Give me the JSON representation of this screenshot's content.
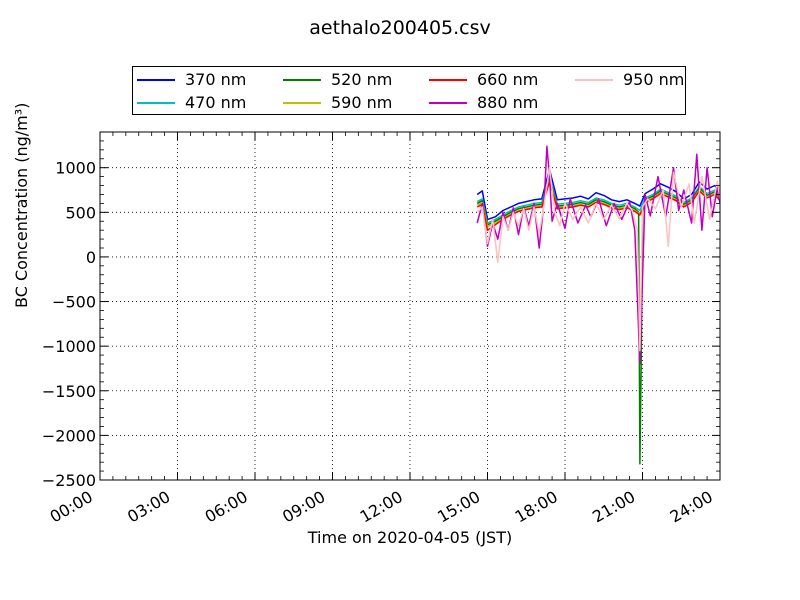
{
  "chart_data": {
    "type": "line",
    "title": "aethalo200405.csv",
    "xlabel": "Time on 2020-04-05 (JST)",
    "ylabel": "BC Concentration (ng/m³)",
    "xlim": [
      0,
      24
    ],
    "ylim": [
      -2500,
      1400
    ],
    "x_tick_labels": [
      "00:00",
      "03:00",
      "06:00",
      "09:00",
      "12:00",
      "15:00",
      "18:00",
      "21:00",
      "24:00"
    ],
    "y_ticks": [
      -2500,
      -2000,
      -1500,
      -1000,
      -500,
      0,
      500,
      1000
    ],
    "y_tick_labels": [
      "−2500",
      "−2000",
      "−1500",
      "−1000",
      "−500",
      "0",
      "500",
      "1000"
    ],
    "grid": true,
    "legend_position": "top",
    "series": [
      {
        "name": "370 nm",
        "color": "#0000ff",
        "x": [
          14.6,
          14.8,
          15.0,
          15.3,
          15.6,
          15.9,
          16.2,
          16.5,
          16.8,
          17.1,
          17.4,
          17.7,
          18.0,
          18.3,
          18.6,
          18.9,
          19.2,
          19.5,
          19.8,
          20.1,
          20.4,
          20.7,
          20.9,
          21.1,
          21.4,
          21.7,
          22.0,
          22.3,
          22.6,
          22.9,
          23.2,
          23.5,
          23.8,
          24.0
        ],
        "y": [
          700,
          740,
          420,
          450,
          520,
          560,
          600,
          620,
          640,
          650,
          980,
          640,
          650,
          660,
          680,
          650,
          720,
          690,
          640,
          620,
          640,
          600,
          570,
          710,
          760,
          820,
          780,
          730,
          650,
          700,
          840,
          760,
          800,
          720
        ]
      },
      {
        "name": "470 nm",
        "color": "#00bfbf",
        "x": [
          14.6,
          14.8,
          15.0,
          15.3,
          15.6,
          15.9,
          16.2,
          16.5,
          16.8,
          17.1,
          17.4,
          17.7,
          18.0,
          18.3,
          18.6,
          18.9,
          19.2,
          19.5,
          19.8,
          20.1,
          20.4,
          20.7,
          20.9,
          21.1,
          21.4,
          21.7,
          22.0,
          22.3,
          22.6,
          22.9,
          23.2,
          23.5,
          23.8,
          24.0
        ],
        "y": [
          620,
          650,
          380,
          420,
          470,
          520,
          560,
          580,
          600,
          610,
          900,
          590,
          600,
          610,
          630,
          610,
          660,
          640,
          600,
          580,
          600,
          560,
          520,
          660,
          700,
          760,
          720,
          680,
          610,
          660,
          790,
          710,
          750,
          680
        ]
      },
      {
        "name": "520 nm",
        "color": "#008000",
        "x": [
          14.6,
          14.8,
          15.0,
          15.3,
          15.6,
          15.9,
          16.2,
          16.5,
          16.8,
          17.1,
          17.4,
          17.7,
          18.0,
          18.3,
          18.6,
          18.9,
          19.2,
          19.5,
          19.8,
          20.1,
          20.4,
          20.7,
          20.85,
          20.9,
          20.95,
          21.0,
          21.1,
          21.4,
          21.7,
          22.0,
          22.3,
          22.6,
          22.9,
          23.2,
          23.5,
          23.8,
          24.0
        ],
        "y": [
          600,
          630,
          360,
          400,
          450,
          500,
          540,
          560,
          580,
          590,
          880,
          570,
          580,
          590,
          610,
          590,
          640,
          620,
          580,
          560,
          580,
          540,
          500,
          -2320,
          -1200,
          500,
          640,
          680,
          740,
          700,
          660,
          590,
          640,
          770,
          690,
          730,
          660
        ]
      },
      {
        "name": "590 nm",
        "color": "#bfbf00",
        "x": [
          14.6,
          14.8,
          15.0,
          15.3,
          15.6,
          15.9,
          16.2,
          16.5,
          16.8,
          17.1,
          17.4,
          17.7,
          18.0,
          18.3,
          18.6,
          18.9,
          19.2,
          19.5,
          19.8,
          20.1,
          20.4,
          20.7,
          20.9,
          21.1,
          21.4,
          21.7,
          22.0,
          22.3,
          22.6,
          22.9,
          23.2,
          23.5,
          23.8,
          24.0
        ],
        "y": [
          580,
          610,
          340,
          380,
          430,
          480,
          520,
          540,
          560,
          570,
          860,
          550,
          560,
          570,
          590,
          570,
          620,
          600,
          560,
          540,
          560,
          520,
          480,
          620,
          660,
          720,
          680,
          640,
          570,
          620,
          750,
          670,
          710,
          640
        ]
      },
      {
        "name": "660 nm",
        "color": "#ff0000",
        "x": [
          14.6,
          14.8,
          15.0,
          15.3,
          15.6,
          15.9,
          16.2,
          16.5,
          16.8,
          17.1,
          17.4,
          17.7,
          18.0,
          18.3,
          18.6,
          18.9,
          19.2,
          19.5,
          19.8,
          20.1,
          20.4,
          20.7,
          20.9,
          21.1,
          21.4,
          21.7,
          22.0,
          22.3,
          22.6,
          22.9,
          23.2,
          23.5,
          23.8,
          24.0
        ],
        "y": [
          560,
          590,
          300,
          360,
          420,
          470,
          510,
          530,
          550,
          560,
          840,
          540,
          550,
          560,
          580,
          560,
          610,
          590,
          550,
          530,
          550,
          510,
          470,
          610,
          650,
          710,
          670,
          630,
          560,
          610,
          740,
          660,
          700,
          630
        ]
      },
      {
        "name": "880 nm",
        "color": "#bf00bf",
        "x": [
          14.6,
          14.8,
          15.0,
          15.2,
          15.4,
          15.6,
          15.8,
          16.0,
          16.2,
          16.4,
          16.6,
          16.8,
          17.0,
          17.2,
          17.3,
          17.4,
          17.5,
          17.7,
          18.0,
          18.2,
          18.5,
          18.8,
          19.0,
          19.3,
          19.6,
          19.9,
          20.2,
          20.5,
          20.7,
          20.9,
          21.1,
          21.3,
          21.6,
          21.9,
          22.2,
          22.4,
          22.6,
          22.9,
          23.1,
          23.3,
          23.5,
          23.7,
          23.9,
          24.0
        ],
        "y": [
          380,
          600,
          120,
          380,
          200,
          500,
          300,
          550,
          250,
          560,
          350,
          600,
          100,
          650,
          1240,
          900,
          400,
          600,
          320,
          650,
          380,
          580,
          450,
          650,
          350,
          600,
          420,
          620,
          300,
          -1200,
          700,
          460,
          900,
          450,
          1000,
          520,
          750,
          380,
          1150,
          300,
          1000,
          450,
          780,
          600
        ]
      },
      {
        "name": "950 nm",
        "color": "#ffc0c0",
        "x": [
          14.6,
          14.8,
          15.0,
          15.2,
          15.4,
          15.6,
          15.8,
          16.0,
          16.2,
          16.4,
          16.6,
          16.8,
          17.0,
          17.2,
          17.4,
          17.6,
          17.8,
          18.0,
          18.3,
          18.6,
          18.9,
          19.2,
          19.5,
          19.8,
          20.1,
          20.4,
          20.6,
          20.8,
          20.9,
          21.0,
          21.2,
          21.5,
          21.8,
          22.0,
          22.2,
          22.5,
          22.8,
          23.0,
          23.3,
          23.6,
          23.9,
          24.0
        ],
        "y": [
          500,
          560,
          150,
          420,
          -60,
          450,
          300,
          500,
          350,
          540,
          300,
          560,
          260,
          600,
          1000,
          500,
          350,
          600,
          420,
          560,
          380,
          600,
          420,
          580,
          430,
          600,
          520,
          300,
          -1050,
          560,
          650,
          540,
          750,
          120,
          950,
          560,
          820,
          380,
          900,
          420,
          850,
          650
        ]
      }
    ]
  }
}
